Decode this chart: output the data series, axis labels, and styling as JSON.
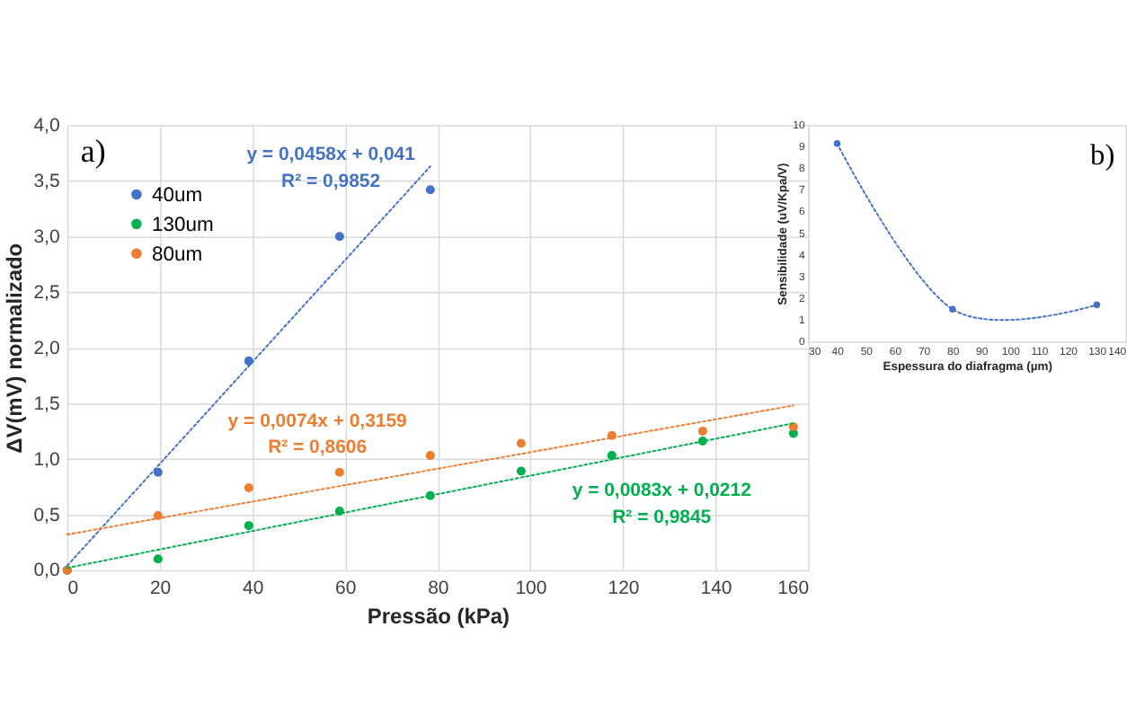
{
  "chart_data": [
    {
      "type": "scatter",
      "xlabel": "Pressão (kPa)",
      "ylabel": "ΔV(mV) normalizado",
      "xlim": [
        0,
        160
      ],
      "xticks": [
        0,
        20,
        40,
        60,
        80,
        100,
        120,
        140,
        160
      ],
      "ylim": [
        0,
        4
      ],
      "yticks": [
        {
          "value": 0,
          "label": "0,0"
        },
        {
          "value": 0.5,
          "label": "0,5"
        },
        {
          "value": 1,
          "label": "1,0"
        },
        {
          "value": 1.5,
          "label": "1,5"
        },
        {
          "value": 2,
          "label": "2,0"
        },
        {
          "value": 2.5,
          "label": "2,5"
        },
        {
          "value": 3,
          "label": "3,0"
        },
        {
          "value": 3.5,
          "label": "3,5"
        },
        {
          "value": 4,
          "label": "4,0"
        }
      ],
      "grid": true,
      "legend": "top left",
      "series": [
        {
          "name": "40um",
          "color": "#4472c4",
          "marker": "circle",
          "x": [
            0,
            19.6,
            39.2,
            58.8,
            78.4
          ],
          "values": [
            0,
            0.88,
            1.88,
            3.0,
            3.42
          ]
        },
        {
          "name": "130um",
          "color": "#00b050",
          "marker": "circle",
          "x": [
            0,
            19.6,
            39.2,
            58.8,
            78.4,
            98,
            117.6,
            137.2,
            156.8
          ],
          "values": [
            0,
            0.1,
            0.4,
            0.53,
            0.67,
            0.89,
            1.03,
            1.16,
            1.23
          ]
        },
        {
          "name": "80um",
          "color": "#ed7d31",
          "marker": "circle",
          "x": [
            0,
            19.6,
            39.2,
            58.8,
            78.4,
            98,
            117.6,
            137.2,
            156.8
          ],
          "values": [
            0,
            0.49,
            0.74,
            0.88,
            1.03,
            1.14,
            1.21,
            1.25,
            1.29
          ]
        },
        {
          "type": "line",
          "color": "#4472c4",
          "line_style": "dotted",
          "x": [
            0,
            78.4
          ],
          "values": [
            0.04,
            3.63
          ]
        },
        {
          "type": "line",
          "color": "#00b050",
          "line_style": "dotted",
          "x": [
            0,
            156.8
          ],
          "values": [
            0.02,
            1.32
          ]
        },
        {
          "type": "line",
          "color": "#ed7d31",
          "line_style": "dotted",
          "x": [
            0,
            156.8
          ],
          "values": [
            0.32,
            1.48
          ]
        }
      ],
      "annotations": [
        "a)",
        "y = 0,0458x + 0,041",
        "R² = 0,9852",
        "y = 0,0083x + 0,0212",
        "R² = 0,9845",
        "y = 0,0074x + 0,3159",
        "R² = 0,8606"
      ]
    },
    {
      "type": "line",
      "xlabel": "Espessura do diafragma (µm)",
      "ylabel": "Sensibilidade (uV/Kpa/V)",
      "xlim": [
        30,
        140
      ],
      "xticks": [
        30,
        40,
        50,
        60,
        70,
        80,
        90,
        100,
        110,
        120,
        130,
        140
      ],
      "ylim": [
        0,
        10
      ],
      "yticks": [
        0,
        1,
        2,
        3,
        4,
        5,
        6,
        7,
        8,
        9,
        10
      ],
      "grid": false,
      "line_style": "dotted",
      "series": [
        {
          "color": "#4472c4",
          "marker": "circle",
          "x": [
            40,
            80,
            130
          ],
          "values": [
            9.15,
            1.5,
            1.7
          ]
        }
      ],
      "annotations": [
        "b)"
      ]
    }
  ]
}
